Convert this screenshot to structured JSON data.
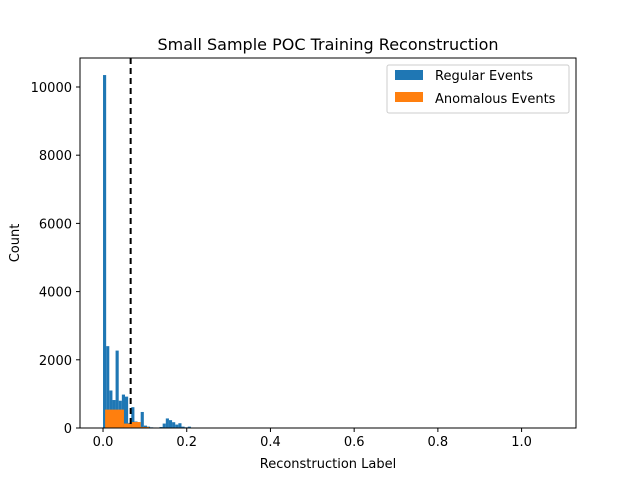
{
  "chart_data": {
    "type": "bar",
    "title": "Small Sample POC Training Reconstruction",
    "xlabel": "Reconstruction Label",
    "ylabel": "Count",
    "xlim": [
      -0.055,
      1.13
    ],
    "ylim": [
      0,
      10850
    ],
    "xticks": [
      0.0,
      0.2,
      0.4,
      0.6,
      0.8,
      1.0
    ],
    "xtick_labels": [
      "0.0",
      "0.2",
      "0.4",
      "0.6",
      "0.8",
      "1.0"
    ],
    "yticks": [
      0,
      2000,
      4000,
      6000,
      8000,
      10000
    ],
    "ytick_labels": [
      "0",
      "2000",
      "4000",
      "6000",
      "8000",
      "10000"
    ],
    "grid": false,
    "legend_position": "upper-right",
    "threshold_line": {
      "x": 0.066,
      "style": "dashed",
      "color": "#000000"
    },
    "series": [
      {
        "name": "Regular Events",
        "color": "#1f77b4",
        "bins": [
          {
            "x0": 0.0,
            "x1": 0.0075,
            "y": 10350
          },
          {
            "x0": 0.0075,
            "x1": 0.015,
            "y": 2400
          },
          {
            "x0": 0.015,
            "x1": 0.0225,
            "y": 1100
          },
          {
            "x0": 0.0225,
            "x1": 0.03,
            "y": 820
          },
          {
            "x0": 0.03,
            "x1": 0.0375,
            "y": 2270
          },
          {
            "x0": 0.0375,
            "x1": 0.045,
            "y": 800
          },
          {
            "x0": 0.045,
            "x1": 0.0525,
            "y": 980
          },
          {
            "x0": 0.0525,
            "x1": 0.06,
            "y": 920
          },
          {
            "x0": 0.06,
            "x1": 0.0675,
            "y": 150
          },
          {
            "x0": 0.0675,
            "x1": 0.075,
            "y": 610
          },
          {
            "x0": 0.075,
            "x1": 0.0825,
            "y": 190
          },
          {
            "x0": 0.0825,
            "x1": 0.09,
            "y": 140
          },
          {
            "x0": 0.09,
            "x1": 0.0975,
            "y": 470
          },
          {
            "x0": 0.0975,
            "x1": 0.105,
            "y": 70
          },
          {
            "x0": 0.105,
            "x1": 0.1125,
            "y": 40
          },
          {
            "x0": 0.1125,
            "x1": 0.12,
            "y": 20
          },
          {
            "x0": 0.12,
            "x1": 0.1275,
            "y": 15
          },
          {
            "x0": 0.1275,
            "x1": 0.135,
            "y": 10
          },
          {
            "x0": 0.135,
            "x1": 0.1425,
            "y": 30
          },
          {
            "x0": 0.1425,
            "x1": 0.15,
            "y": 130
          },
          {
            "x0": 0.15,
            "x1": 0.1575,
            "y": 280
          },
          {
            "x0": 0.1575,
            "x1": 0.165,
            "y": 230
          },
          {
            "x0": 0.165,
            "x1": 0.1725,
            "y": 170
          },
          {
            "x0": 0.1725,
            "x1": 0.18,
            "y": 100
          },
          {
            "x0": 0.18,
            "x1": 0.1875,
            "y": 140
          },
          {
            "x0": 0.1875,
            "x1": 0.195,
            "y": 40
          },
          {
            "x0": 0.195,
            "x1": 0.2025,
            "y": 20
          },
          {
            "x0": 0.2025,
            "x1": 0.21,
            "y": 40
          },
          {
            "x0": 0.21,
            "x1": 0.2175,
            "y": 10
          }
        ]
      },
      {
        "name": "Anomalous Events",
        "color": "#ff7f0e",
        "bins": [
          {
            "x0": 0.005,
            "x1": 0.05,
            "y": 540
          },
          {
            "x0": 0.05,
            "x1": 0.069,
            "y": 130
          },
          {
            "x0": 0.069,
            "x1": 0.09,
            "y": 175
          },
          {
            "x0": 0.09,
            "x1": 0.11,
            "y": 30
          }
        ]
      }
    ]
  }
}
